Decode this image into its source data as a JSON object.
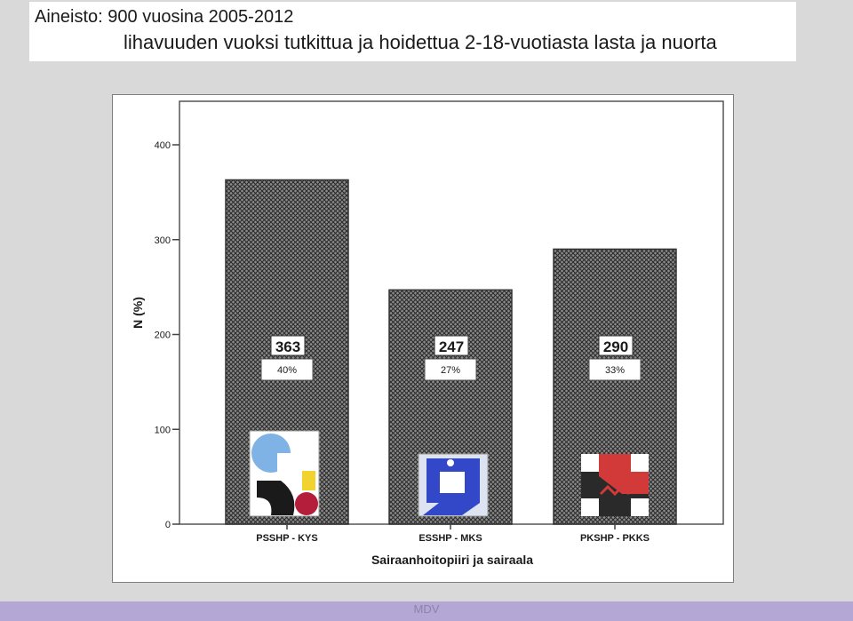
{
  "title": {
    "line1": "Aineisto: 900 vuosina 2005-2012",
    "line2": "lihavuuden vuoksi tutkittua ja hoidettua 2-18-vuotiasta lasta ja nuorta"
  },
  "footer": {
    "text": "MDV"
  },
  "colors": {
    "bar_fill": "#8c8c8c",
    "bar_hatch": "#2b2b2b",
    "plot_border": "#555555",
    "axis": "#444444",
    "text": "#1a1a1a"
  },
  "chart_data": {
    "type": "bar",
    "categories": [
      "PSSHP - KYS",
      "ESSHP - MKS",
      "PKSHP - PKKS"
    ],
    "values": [
      363,
      247,
      290
    ],
    "data_labels": [
      "363",
      "247",
      "290"
    ],
    "percent_labels": [
      "40%",
      "27%",
      "33%"
    ],
    "logos": [
      "pshp-logo",
      "esshp-logo",
      "pkshp-logo"
    ],
    "xlabel": "Sairaanhoitopiiri ja sairaala",
    "ylabel": "N (%)",
    "yticks": [
      0,
      100,
      200,
      300,
      400
    ],
    "ylim": [
      0,
      400
    ],
    "grid": false,
    "legend": "none"
  }
}
